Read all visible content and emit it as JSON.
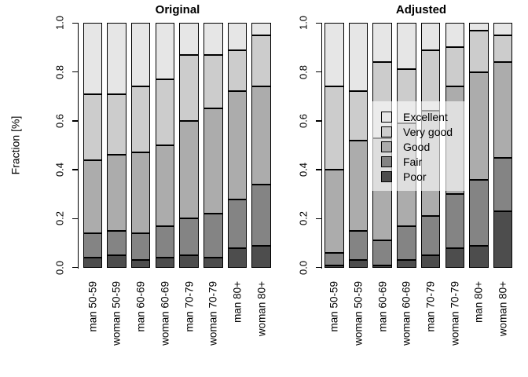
{
  "figure": {
    "ylabel": "Fraction [%]",
    "background": "#ffffff",
    "panel_titles": [
      "Original",
      "Adjusted"
    ]
  },
  "legend": {
    "position": "center-right, overlapping Adjusted panel bars, semi-transparent white background",
    "entries": [
      {
        "label": "Excellent",
        "color": "#E6E6E6"
      },
      {
        "label": "Very good",
        "color": "#CCCCCC"
      },
      {
        "label": "Good",
        "color": "#ACACAC"
      },
      {
        "label": "Fair",
        "color": "#848484"
      },
      {
        "label": "Poor",
        "color": "#4D4D4D"
      }
    ]
  },
  "chart_data": [
    {
      "type": "bar",
      "stacked": true,
      "title": "Original",
      "ylabel": "Fraction [%]",
      "ylim": [
        0,
        1
      ],
      "yticks": [
        "0.0",
        "0.2",
        "0.4",
        "0.6",
        "0.8",
        "1.0"
      ],
      "grid": false,
      "categories": [
        "man 50-59",
        "woman 50-59",
        "man 60-69",
        "woman 60-69",
        "man 70-79",
        "woman 70-79",
        "man 80+",
        "woman 80+"
      ],
      "series": [
        {
          "name": "Poor",
          "color": "#4D4D4D",
          "values": [
            0.04,
            0.05,
            0.03,
            0.04,
            0.05,
            0.04,
            0.08,
            0.09
          ]
        },
        {
          "name": "Fair",
          "color": "#848484",
          "values": [
            0.1,
            0.1,
            0.11,
            0.13,
            0.15,
            0.18,
            0.2,
            0.25
          ]
        },
        {
          "name": "Good",
          "color": "#ACACAC",
          "values": [
            0.3,
            0.31,
            0.33,
            0.33,
            0.4,
            0.43,
            0.44,
            0.4
          ]
        },
        {
          "name": "Very good",
          "color": "#CCCCCC",
          "values": [
            0.27,
            0.25,
            0.27,
            0.27,
            0.27,
            0.22,
            0.17,
            0.21
          ]
        },
        {
          "name": "Excellent",
          "color": "#E6E6E6",
          "values": [
            0.29,
            0.29,
            0.26,
            0.23,
            0.13,
            0.13,
            0.11,
            0.05
          ]
        }
      ]
    },
    {
      "type": "bar",
      "stacked": true,
      "title": "Adjusted",
      "ylabel": "Fraction [%]",
      "ylim": [
        0,
        1
      ],
      "yticks": [
        "0.0",
        "0.2",
        "0.4",
        "0.6",
        "0.8",
        "1.0"
      ],
      "grid": false,
      "categories": [
        "man 50-59",
        "woman 50-59",
        "man 60-69",
        "woman 60-69",
        "man 70-79",
        "woman 70-79",
        "man 80+",
        "woman 80+"
      ],
      "series": [
        {
          "name": "Poor",
          "color": "#4D4D4D",
          "values": [
            0.01,
            0.03,
            0.01,
            0.03,
            0.05,
            0.08,
            0.09,
            0.23
          ]
        },
        {
          "name": "Fair",
          "color": "#848484",
          "values": [
            0.05,
            0.12,
            0.1,
            0.14,
            0.16,
            0.22,
            0.27,
            0.22
          ]
        },
        {
          "name": "Good",
          "color": "#ACACAC",
          "values": [
            0.34,
            0.37,
            0.42,
            0.42,
            0.43,
            0.44,
            0.44,
            0.39
          ]
        },
        {
          "name": "Very good",
          "color": "#CCCCCC",
          "values": [
            0.34,
            0.2,
            0.31,
            0.22,
            0.25,
            0.16,
            0.17,
            0.11
          ]
        },
        {
          "name": "Excellent",
          "color": "#E6E6E6",
          "values": [
            0.26,
            0.28,
            0.16,
            0.19,
            0.11,
            0.1,
            0.03,
            0.05
          ]
        }
      ]
    }
  ]
}
